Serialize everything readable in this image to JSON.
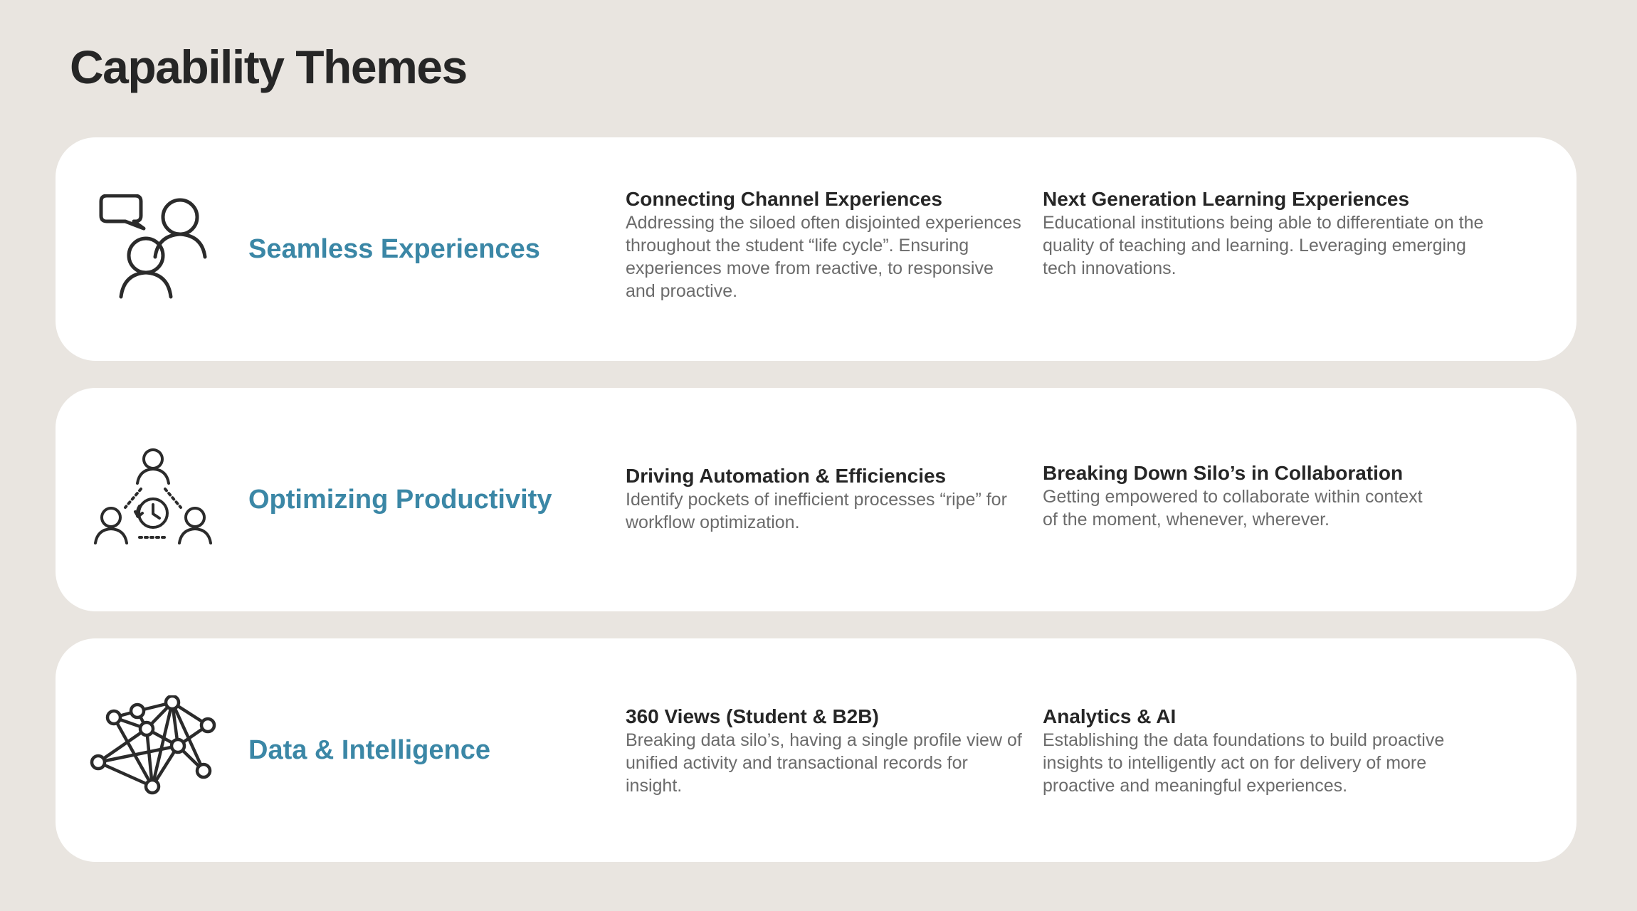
{
  "page": {
    "title": "Capability Themes"
  },
  "themes": [
    {
      "title": "Seamless Experiences",
      "icon": "people-chat-icon",
      "items": [
        {
          "title": "Connecting Channel Experiences",
          "description": "Addressing the siloed often disjointed experiences throughout the student “life cycle”. Ensuring experiences move from reactive, to responsive and proactive."
        },
        {
          "title": "Next Generation Learning Experiences",
          "description": "Educational institutions being able to differentiate on the quality of teaching and learning. Leveraging emerging tech innovations."
        }
      ]
    },
    {
      "title": "Optimizing Productivity",
      "icon": "team-clock-icon",
      "items": [
        {
          "title": "Driving Automation & Efficiencies",
          "description": "Identify pockets of inefficient processes “ripe” for workflow optimization."
        },
        {
          "title": "Breaking Down Silo’s in Collaboration",
          "description": "Getting empowered to collaborate within context of the moment, whenever, wherever."
        }
      ]
    },
    {
      "title": "Data & Intelligence",
      "icon": "network-icon",
      "items": [
        {
          "title": "360 Views (Student & B2B)",
          "description": "Breaking data silo’s, having a single profile view of unified activity and transactional records for insight."
        },
        {
          "title": "Analytics & AI",
          "description": "Establishing the data foundations to build proactive insights to intelligently act on for delivery of more proactive and meaningful experiences."
        }
      ]
    }
  ],
  "colors": {
    "background": "#e9e5e0",
    "card": "#ffffff",
    "accent": "#3b87a6",
    "heading": "#262626",
    "body_text": "#6b6b6b"
  }
}
